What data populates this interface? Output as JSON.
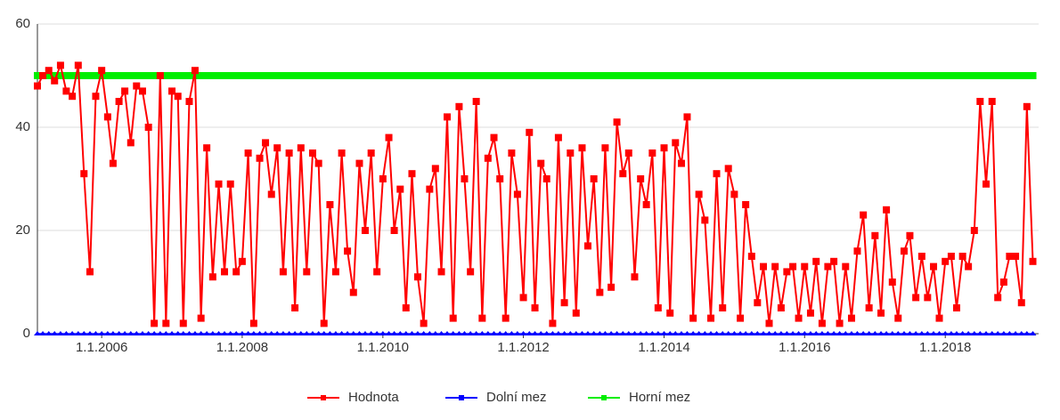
{
  "chart_data": {
    "type": "line",
    "x": [
      "2005-02",
      "2005-03",
      "2005-04",
      "2005-05",
      "2005-06",
      "2005-07",
      "2005-08",
      "2005-09",
      "2005-10",
      "2005-11",
      "2005-12",
      "2006-01",
      "2006-02",
      "2006-03",
      "2006-04",
      "2006-05",
      "2006-06",
      "2006-07",
      "2006-08",
      "2006-09",
      "2006-10",
      "2006-11",
      "2006-12",
      "2007-01",
      "2007-02",
      "2007-03",
      "2007-04",
      "2007-05",
      "2007-06",
      "2007-07",
      "2007-08",
      "2007-09",
      "2007-10",
      "2007-11",
      "2007-12",
      "2008-01",
      "2008-02",
      "2008-03",
      "2008-04",
      "2008-05",
      "2008-06",
      "2008-07",
      "2008-08",
      "2008-09",
      "2008-10",
      "2008-11",
      "2008-12",
      "2009-01",
      "2009-02",
      "2009-03",
      "2009-04",
      "2009-05",
      "2009-06",
      "2009-07",
      "2009-08",
      "2009-09",
      "2009-10",
      "2009-11",
      "2009-12",
      "2010-01",
      "2010-02",
      "2010-03",
      "2010-04",
      "2010-05",
      "2010-06",
      "2010-07",
      "2010-08",
      "2010-09",
      "2010-10",
      "2010-11",
      "2010-12",
      "2011-01",
      "2011-02",
      "2011-03",
      "2011-04",
      "2011-05",
      "2011-06",
      "2011-07",
      "2011-08",
      "2011-09",
      "2011-10",
      "2011-11",
      "2011-12",
      "2012-01",
      "2012-02",
      "2012-03",
      "2012-04",
      "2012-05",
      "2012-06",
      "2012-07",
      "2012-08",
      "2012-09",
      "2012-10",
      "2012-11",
      "2012-12",
      "2013-01",
      "2013-02",
      "2013-03",
      "2013-04",
      "2013-05",
      "2013-06",
      "2013-07",
      "2013-08",
      "2013-09",
      "2013-10",
      "2013-11",
      "2013-12",
      "2014-01",
      "2014-02",
      "2014-03",
      "2014-04",
      "2014-05",
      "2014-06",
      "2014-07",
      "2014-08",
      "2014-09",
      "2014-10",
      "2014-11",
      "2014-12",
      "2015-01",
      "2015-02",
      "2015-03",
      "2015-04",
      "2015-05",
      "2015-06",
      "2015-07",
      "2015-08",
      "2015-09",
      "2015-10",
      "2015-11",
      "2015-12",
      "2016-01",
      "2016-02",
      "2016-03",
      "2016-04",
      "2016-05",
      "2016-06",
      "2016-07",
      "2016-08",
      "2016-09",
      "2016-10",
      "2016-11",
      "2016-12",
      "2017-01",
      "2017-02",
      "2017-03",
      "2017-04",
      "2017-05",
      "2017-06",
      "2017-07",
      "2017-08",
      "2017-09",
      "2017-10",
      "2017-11",
      "2017-12",
      "2018-01",
      "2018-02",
      "2018-03",
      "2018-04",
      "2018-05",
      "2018-06",
      "2018-07",
      "2018-08",
      "2018-09",
      "2018-10",
      "2018-11",
      "2018-12",
      "2019-01",
      "2019-02",
      "2019-03",
      "2019-04"
    ],
    "series": [
      {
        "name": "Hodnota",
        "color": "#ff0000",
        "values": [
          48,
          50,
          51,
          49,
          52,
          47,
          46,
          52,
          31,
          12,
          46,
          51,
          42,
          33,
          45,
          47,
          37,
          48,
          47,
          40,
          2,
          50,
          2,
          47,
          46,
          2,
          45,
          51,
          3,
          36,
          11,
          29,
          12,
          29,
          12,
          14,
          35,
          2,
          34,
          37,
          27,
          36,
          12,
          35,
          5,
          36,
          12,
          35,
          33,
          2,
          25,
          12,
          35,
          16,
          8,
          33,
          20,
          35,
          12,
          30,
          38,
          20,
          28,
          5,
          31,
          11,
          2,
          28,
          32,
          12,
          42,
          3,
          44,
          30,
          12,
          45,
          3,
          34,
          38,
          30,
          3,
          35,
          27,
          7,
          39,
          5,
          33,
          30,
          2,
          38,
          6,
          35,
          4,
          36,
          17,
          30,
          8,
          36,
          9,
          41,
          31,
          35,
          11,
          30,
          25,
          35,
          5,
          36,
          4,
          37,
          33,
          42,
          3,
          27,
          22,
          3,
          31,
          5,
          32,
          27,
          3,
          25,
          15,
          6,
          13,
          2,
          13,
          5,
          12,
          13,
          3,
          13,
          4,
          14,
          2,
          13,
          14,
          2,
          13,
          3,
          16,
          23,
          5,
          19,
          4,
          24,
          10,
          3,
          16,
          19,
          7,
          15,
          7,
          13,
          3,
          14,
          15,
          5,
          15,
          13,
          20,
          45,
          29,
          45,
          7,
          10,
          15,
          15,
          6,
          44,
          14
        ]
      },
      {
        "name": "Dolní mez",
        "color": "#0000ff",
        "values": [
          0,
          0,
          0,
          0,
          0,
          0,
          0,
          0,
          0,
          0,
          0,
          0,
          0,
          0,
          0,
          0,
          0,
          0,
          0,
          0,
          0,
          0,
          0,
          0,
          0,
          0,
          0,
          0,
          0,
          0,
          0,
          0,
          0,
          0,
          0,
          0,
          0,
          0,
          0,
          0,
          0,
          0,
          0,
          0,
          0,
          0,
          0,
          0,
          0,
          0,
          0,
          0,
          0,
          0,
          0,
          0,
          0,
          0,
          0,
          0,
          0,
          0,
          0,
          0,
          0,
          0,
          0,
          0,
          0,
          0,
          0,
          0,
          0,
          0,
          0,
          0,
          0,
          0,
          0,
          0,
          0,
          0,
          0,
          0,
          0,
          0,
          0,
          0,
          0,
          0,
          0,
          0,
          0,
          0,
          0,
          0,
          0,
          0,
          0,
          0,
          0,
          0,
          0,
          0,
          0,
          0,
          0,
          0,
          0,
          0,
          0,
          0,
          0,
          0,
          0,
          0,
          0,
          0,
          0,
          0,
          0,
          0,
          0,
          0,
          0,
          0,
          0,
          0,
          0,
          0,
          0,
          0,
          0,
          0,
          0,
          0,
          0,
          0,
          0,
          0,
          0,
          0,
          0,
          0,
          0,
          0,
          0,
          0,
          0,
          0,
          0,
          0,
          0,
          0,
          0,
          0,
          0,
          0,
          0,
          0,
          0,
          0,
          0,
          0,
          0,
          0,
          0,
          0,
          0,
          0,
          0
        ]
      },
      {
        "name": "Horní mez",
        "color": "#00ee00",
        "values": [
          50,
          50,
          50,
          50,
          50,
          50,
          50,
          50,
          50,
          50,
          50,
          50,
          50,
          50,
          50,
          50,
          50,
          50,
          50,
          50,
          50,
          50,
          50,
          50,
          50,
          50,
          50,
          50,
          50,
          50,
          50,
          50,
          50,
          50,
          50,
          50,
          50,
          50,
          50,
          50,
          50,
          50,
          50,
          50,
          50,
          50,
          50,
          50,
          50,
          50,
          50,
          50,
          50,
          50,
          50,
          50,
          50,
          50,
          50,
          50,
          50,
          50,
          50,
          50,
          50,
          50,
          50,
          50,
          50,
          50,
          50,
          50,
          50,
          50,
          50,
          50,
          50,
          50,
          50,
          50,
          50,
          50,
          50,
          50,
          50,
          50,
          50,
          50,
          50,
          50,
          50,
          50,
          50,
          50,
          50,
          50,
          50,
          50,
          50,
          50,
          50,
          50,
          50,
          50,
          50,
          50,
          50,
          50,
          50,
          50,
          50,
          50,
          50,
          50,
          50,
          50,
          50,
          50,
          50,
          50,
          50,
          50,
          50,
          50,
          50,
          50,
          50,
          50,
          50,
          50,
          50,
          50,
          50,
          50,
          50,
          50,
          50,
          50,
          50,
          50,
          50,
          50,
          50,
          50,
          50,
          50,
          50,
          50,
          50,
          50,
          50,
          50,
          50,
          50,
          50,
          50,
          50,
          50,
          50,
          50,
          50,
          50,
          50,
          50,
          50,
          50,
          50,
          50,
          50,
          50,
          50
        ]
      }
    ],
    "xlim": [
      "2005-02",
      "2019-05"
    ],
    "xticks": [
      {
        "value": "2006-01-01",
        "label": "1.1.2006"
      },
      {
        "value": "2008-01-01",
        "label": "1.1.2008"
      },
      {
        "value": "2010-01-01",
        "label": "1.1.2010"
      },
      {
        "value": "2012-01-01",
        "label": "1.1.2012"
      },
      {
        "value": "2014-01-01",
        "label": "1.1.2014"
      },
      {
        "value": "2016-01-01",
        "label": "1.1.2016"
      },
      {
        "value": "2018-01-01",
        "label": "1.1.2018"
      }
    ],
    "ylim": [
      0,
      60
    ],
    "yticks": [
      0,
      20,
      40,
      60
    ],
    "grid": true,
    "legend": "bottom"
  }
}
